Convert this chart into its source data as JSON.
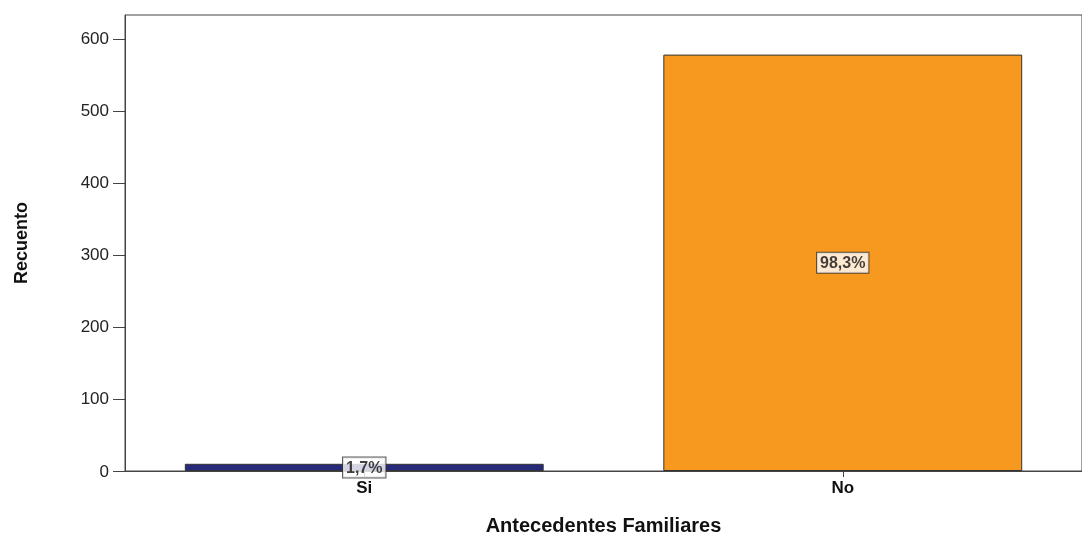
{
  "chart_data": {
    "type": "bar",
    "xlabel": "Antecedentes Familiares",
    "ylabel": "Recuento",
    "categories": [
      "Si",
      "No"
    ],
    "values": [
      10,
      578
    ],
    "colors": [
      "#262a78",
      "#f7981f"
    ],
    "annotations": [
      "1,7%",
      "98,3%"
    ],
    "ylim": [
      0,
      633
    ],
    "yticks": [
      0,
      100,
      200,
      300,
      400,
      500,
      600
    ],
    "grid": false
  }
}
